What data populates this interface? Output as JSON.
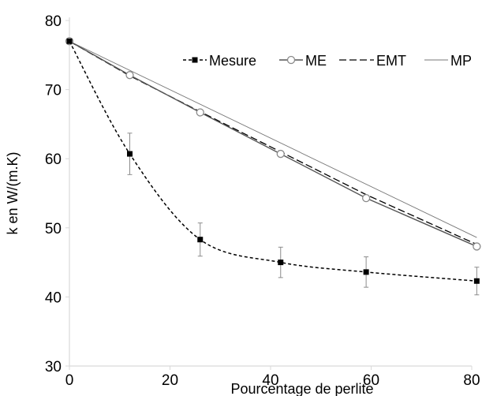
{
  "chart_data": {
    "type": "line",
    "title": "",
    "xlabel": "Pourcentage de perlite",
    "ylabel": "k en W/(m.K)",
    "xlim": [
      0,
      80
    ],
    "ylim": [
      30,
      80
    ],
    "x_ticks": [
      0,
      20,
      40,
      60,
      80
    ],
    "y_ticks": [
      30,
      40,
      50,
      60,
      70,
      80
    ],
    "x_tick_labels": [
      "0",
      "20",
      "40",
      "60",
      "80"
    ],
    "y_tick_labels": [
      "30",
      "40",
      "50",
      "60",
      "70",
      "80"
    ],
    "grid": false,
    "legend_position": "top-right",
    "series": [
      {
        "name": "Mesure",
        "style": "dashed",
        "marker": "filled-square",
        "color": "#000000",
        "smooth": true,
        "x": [
          0,
          12,
          26,
          42,
          59,
          81
        ],
        "y": [
          77,
          60.7,
          48.3,
          45.0,
          43.6,
          42.3
        ],
        "error": [
          0.3,
          3.0,
          2.4,
          2.2,
          2.2,
          2.0
        ]
      },
      {
        "name": "ME",
        "style": "solid",
        "marker": "open-circle",
        "color": "#555555",
        "x": [
          0,
          12,
          26,
          42,
          59,
          81
        ],
        "y": [
          77,
          72.1,
          66.7,
          60.7,
          54.3,
          47.3
        ]
      },
      {
        "name": "EMT",
        "style": "long-dash",
        "marker": "none",
        "color": "#000000",
        "x": [
          0,
          12,
          26,
          42,
          59,
          81
        ],
        "y": [
          77,
          72.0,
          66.8,
          61.0,
          54.8,
          47.6
        ]
      },
      {
        "name": "MP",
        "style": "solid-thin",
        "marker": "none",
        "color": "#777777",
        "x": [
          0,
          81
        ],
        "y": [
          77,
          48.6
        ]
      }
    ]
  }
}
